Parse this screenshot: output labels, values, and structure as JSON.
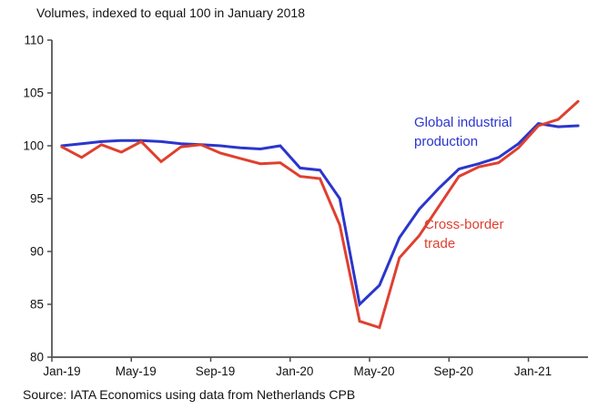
{
  "title": "Volumes, indexed to equal 100 in January 2018",
  "source": "Source: IATA Economics using data from Netherlands CPB",
  "colors": {
    "industrial": "#2b36cc",
    "trade": "#df4030",
    "axis": "#4d4d4d",
    "text": "#121212"
  },
  "legend": {
    "industrial": "Global industrial production",
    "trade": "Cross-border trade"
  },
  "chart_data": {
    "type": "line",
    "title": "Volumes, indexed to equal 100 in January 2018",
    "source": "Source: IATA Economics using data from Netherlands CPB",
    "x": [
      "Jan-19",
      "Feb-19",
      "Mar-19",
      "Apr-19",
      "May-19",
      "Jun-19",
      "Jul-19",
      "Aug-19",
      "Sep-19",
      "Oct-19",
      "Nov-19",
      "Dec-19",
      "Jan-20",
      "Feb-20",
      "Mar-20",
      "Apr-20",
      "May-20",
      "Jun-20",
      "Jul-20",
      "Aug-20",
      "Sep-20",
      "Oct-20",
      "Nov-20",
      "Dec-20",
      "Jan-21",
      "Feb-21",
      "Mar-21"
    ],
    "series": [
      {
        "name": "Global industrial production",
        "color_key": "industrial",
        "values": [
          100.0,
          100.2,
          100.4,
          100.5,
          100.5,
          100.4,
          100.2,
          100.1,
          100.0,
          99.8,
          99.7,
          100.0,
          97.9,
          97.7,
          95.0,
          85.0,
          86.8,
          91.3,
          94.0,
          96.0,
          97.8,
          98.3,
          98.9,
          100.2,
          102.1,
          101.8,
          101.9
        ]
      },
      {
        "name": "Cross-border trade",
        "color_key": "trade",
        "values": [
          99.9,
          98.9,
          100.1,
          99.4,
          100.4,
          98.5,
          99.9,
          100.1,
          99.3,
          98.8,
          98.3,
          98.4,
          97.1,
          96.9,
          92.5,
          83.4,
          82.8,
          89.4,
          91.5,
          94.3,
          97.1,
          98.0,
          98.4,
          99.8,
          101.9,
          102.5,
          104.2
        ]
      }
    ],
    "ylim": [
      80,
      110
    ],
    "yticks": [
      80,
      85,
      90,
      95,
      100,
      105,
      110
    ],
    "xtick_indices": [
      0,
      4,
      8,
      12,
      16,
      20,
      24
    ],
    "xtick_labels": [
      "Jan-19",
      "May-19",
      "Sep-19",
      "Jan-20",
      "May-20",
      "Sep-20",
      "Jan-21"
    ],
    "grid": false,
    "legend_position": "annotations-inside-plot"
  }
}
